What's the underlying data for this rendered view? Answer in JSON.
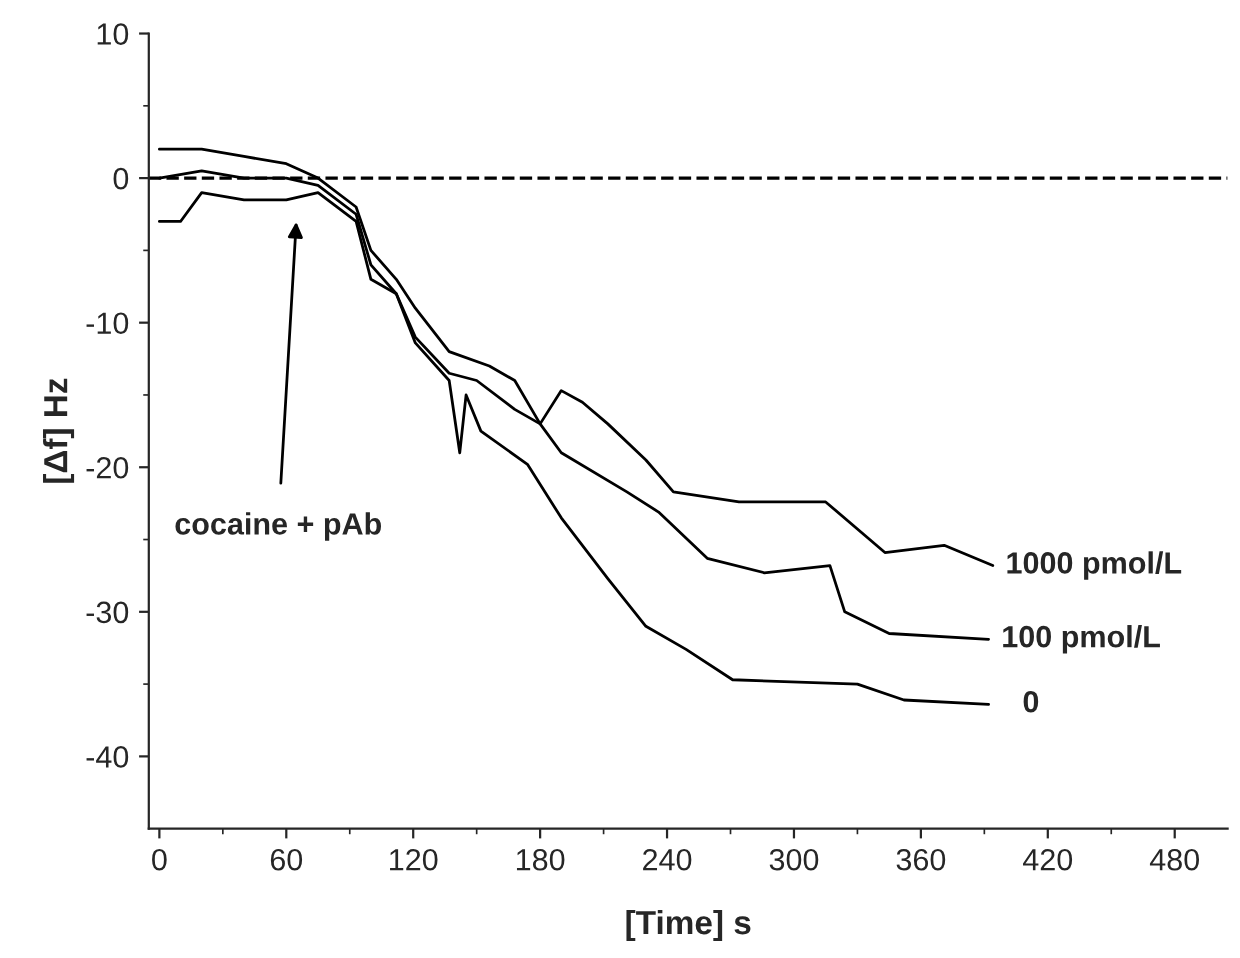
{
  "chart_data": {
    "type": "line",
    "xlabel": "[Time] s",
    "ylabel": "[Δf] Hz",
    "xlim": [
      -5,
      505
    ],
    "ylim": [
      -45,
      10
    ],
    "xticks": [
      0,
      60,
      120,
      180,
      240,
      300,
      360,
      420,
      480
    ],
    "yticks": [
      -40,
      -30,
      -20,
      -10,
      0,
      10
    ],
    "series": [
      {
        "name": "1000 pmol/L",
        "color": "#000000",
        "x": [
          0,
          20,
          40,
          60,
          75,
          93,
          100,
          112,
          121,
          137,
          156,
          168,
          180,
          190,
          200,
          212,
          230,
          243,
          274,
          315,
          343,
          371,
          394
        ],
        "values": [
          2,
          2,
          1.5,
          1,
          0,
          -2,
          -5,
          -7,
          -9,
          -12,
          -13,
          -14,
          -17,
          -14.7,
          -15.5,
          -17,
          -19.5,
          -21.7,
          -22.4,
          -22.4,
          -25.9,
          -25.4,
          -26.8
        ]
      },
      {
        "name": "100 pmol/L",
        "color": "#000000",
        "x": [
          0,
          20,
          40,
          60,
          75,
          93,
          100,
          112,
          121,
          137,
          150,
          168,
          180,
          190,
          221,
          236,
          259,
          286,
          317,
          324,
          345,
          392
        ],
        "values": [
          0,
          0.5,
          0,
          0,
          -0.5,
          -2.5,
          -6,
          -8,
          -11,
          -13.5,
          -14,
          -16,
          -17,
          -19,
          -21.7,
          -23.1,
          -26.3,
          -27.3,
          -26.8,
          -30,
          -31.5,
          -31.9
        ]
      },
      {
        "name": "0",
        "color": "#000000",
        "x": [
          0,
          10,
          20,
          40,
          60,
          75,
          93,
          100,
          112,
          121,
          137,
          142,
          145,
          152,
          174,
          190,
          212,
          230,
          249,
          271,
          330,
          352,
          392
        ],
        "values": [
          -3,
          -3,
          -1,
          -1.5,
          -1.5,
          -1,
          -3,
          -7,
          -8,
          -11.4,
          -14,
          -19,
          -15,
          -17.5,
          -19.8,
          -23.5,
          -27.7,
          -31,
          -32.6,
          -34.7,
          -35,
          -36.1,
          -36.4
        ]
      }
    ],
    "ref_lines": [
      {
        "axis": "y",
        "value": 0,
        "line_style": "dashed",
        "color": "#000000"
      }
    ],
    "annotations": [
      "cocaine + pAb"
    ],
    "legend": false,
    "grid": false
  }
}
